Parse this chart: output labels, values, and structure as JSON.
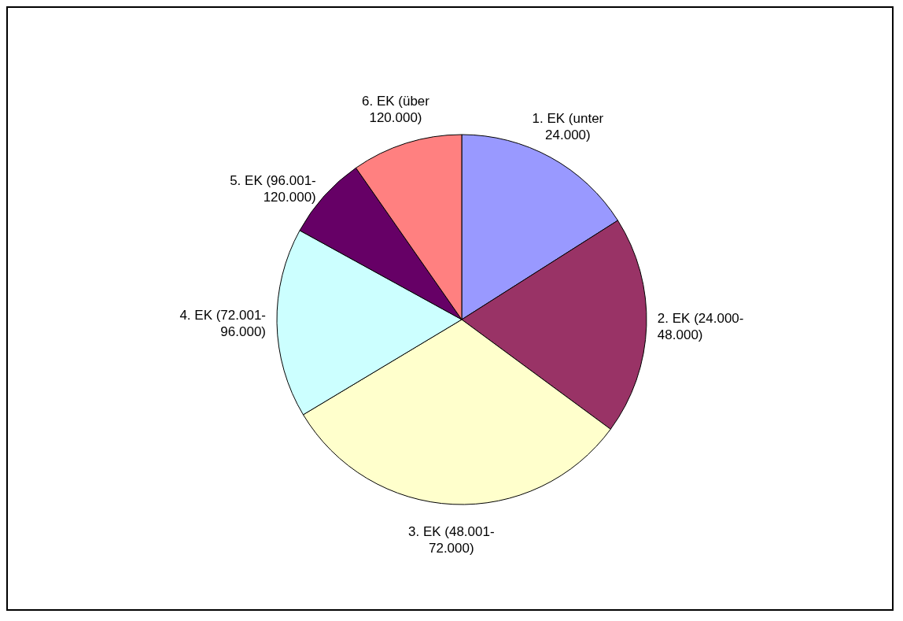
{
  "chart_data": {
    "type": "pie",
    "categories": [
      "1. EK (unter 24.000)",
      "2. EK (24.000-48.000)",
      "3. EK (48.001-72.000)",
      "4. EK (72.001-96.000)",
      "5. EK (96.001-120.000)",
      "6. EK (über 120.000)"
    ],
    "values": [
      16.0,
      19.1,
      31.3,
      16.6,
      7.3,
      9.7
    ],
    "colors": [
      "#9999ff",
      "#993366",
      "#ffffcc",
      "#ccffff",
      "#660066",
      "#ff8080"
    ],
    "legend": false
  }
}
